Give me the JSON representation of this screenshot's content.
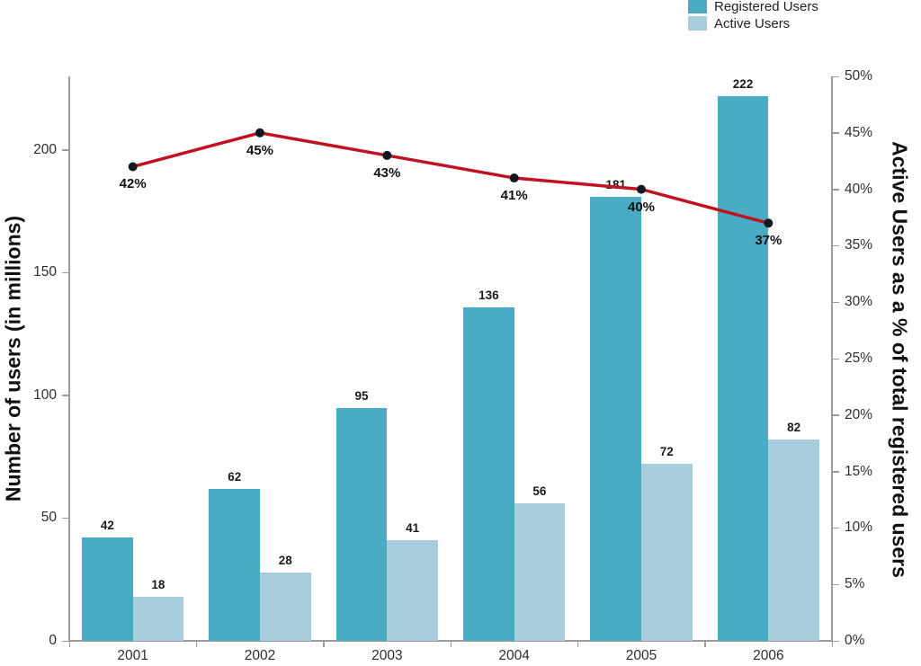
{
  "legend": {
    "position": "top-right",
    "items": [
      {
        "label": "Registered Users",
        "color": "#4aabc5"
      },
      {
        "label": "Active Users",
        "color": "#a8cddd"
      }
    ]
  },
  "chart_data": {
    "type": "bar",
    "title": "",
    "categories": [
      "2001",
      "2002",
      "2003",
      "2004",
      "2005",
      "2006"
    ],
    "series": [
      {
        "name": "Registered Users",
        "type": "bar",
        "axis": "left",
        "color": "#4aabc5",
        "values": [
          42,
          62,
          95,
          136,
          181,
          222
        ]
      },
      {
        "name": "Active Users",
        "type": "bar",
        "axis": "left",
        "color": "#a8cddd",
        "values": [
          18,
          28,
          41,
          56,
          72,
          82
        ]
      },
      {
        "name": "Active Users as a % of total registered users",
        "type": "line",
        "axis": "right",
        "color": "#bf1322",
        "marker_color": "#131722",
        "values": [
          42,
          45,
          43,
          41,
          40,
          37
        ],
        "point_labels": [
          "42%",
          "45%",
          "43%",
          "41%",
          "40%",
          "37%"
        ]
      }
    ],
    "left_axis": {
      "label": "Number of users (in millions)",
      "ticks": [
        "0",
        "50",
        "100",
        "150",
        "200"
      ],
      "tick_values": [
        0,
        50,
        100,
        150,
        200
      ],
      "range": [
        0,
        230
      ]
    },
    "right_axis": {
      "label": "Active Users as a % of total registered users",
      "ticks": [
        "0%",
        "5%",
        "10%",
        "15%",
        "20%",
        "25%",
        "30%",
        "35%",
        "40%",
        "45%",
        "50%"
      ],
      "tick_values": [
        0,
        5,
        10,
        15,
        20,
        25,
        30,
        35,
        40,
        45,
        50
      ],
      "range": [
        0,
        50
      ]
    },
    "grid": false,
    "legend_position": "top-right"
  }
}
